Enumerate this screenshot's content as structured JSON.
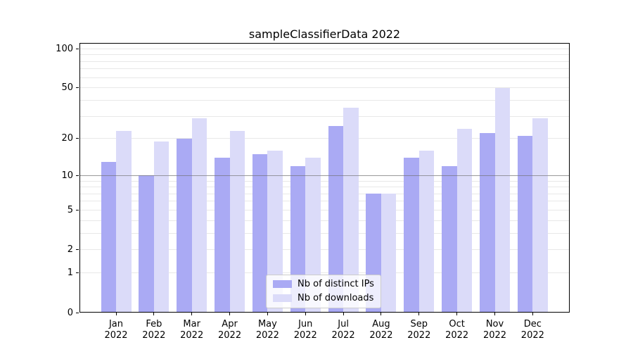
{
  "chart_data": {
    "type": "bar",
    "title": "sampleClassifierData 2022",
    "categories": [
      "Jan",
      "Feb",
      "Mar",
      "Apr",
      "May",
      "Jun",
      "Jul",
      "Aug",
      "Sep",
      "Oct",
      "Nov",
      "Dec"
    ],
    "x_tick_year": "2022",
    "series": [
      {
        "name": "Nb of distinct IPs",
        "color": "#aaaaf4",
        "values": [
          13,
          10,
          20,
          14,
          15,
          12,
          25,
          7,
          14,
          12,
          22,
          21
        ]
      },
      {
        "name": "Nb of downloads",
        "color": "#dbdbf9",
        "values": [
          23,
          19,
          29,
          23,
          16,
          14,
          35,
          7,
          16,
          24,
          50,
          29
        ]
      }
    ],
    "yscale": "log1p",
    "ylim": [
      0,
      111
    ],
    "yticks": [
      100,
      50,
      20,
      10,
      5,
      2,
      1,
      0
    ],
    "gridline_values": [
      1,
      2,
      3,
      4,
      5,
      6,
      7,
      8,
      9,
      10,
      20,
      30,
      40,
      50,
      60,
      70,
      80,
      90,
      100
    ],
    "grid": true,
    "reference_line": {
      "value": 10,
      "color": "rgba(110,110,110,0.65)"
    },
    "legend_position": "lower center",
    "colors": {
      "grid": "#e8e8e8",
      "spine": "#000000",
      "background": "#ffffff"
    }
  }
}
